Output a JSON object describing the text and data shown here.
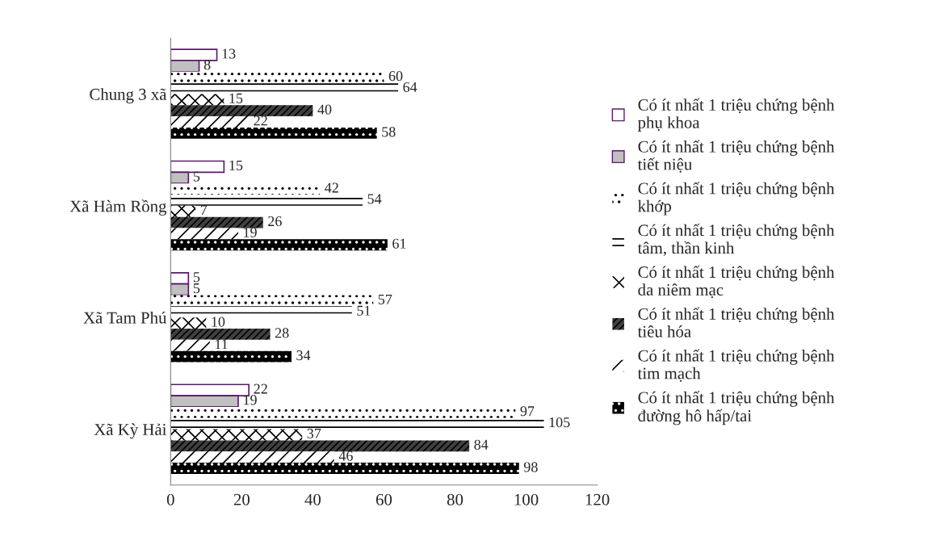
{
  "chart_data": {
    "type": "bar",
    "orientation": "horizontal",
    "categories": [
      "Chung 3 xã",
      "Xã Hàm Rồng",
      "Xã Tam Phú",
      "Xã Kỳ Hải"
    ],
    "series": [
      {
        "name": "Có ít nhất 1 triệu chứng bệnh phụ khoa",
        "color": "#ffffff",
        "values": [
          13,
          15,
          5,
          22
        ]
      },
      {
        "name": "Có ít nhất 1 triệu chứng bệnh tiết niệu",
        "color": "#c0c0c0",
        "values": [
          8,
          5,
          5,
          19
        ]
      },
      {
        "name": "Có ít nhất 1 triệu chứng bệnh khớp",
        "color": "#ffffff",
        "values": [
          60,
          42,
          57,
          97
        ]
      },
      {
        "name": "Có ít nhất 1 triệu chứng bệnh tâm, thần kinh",
        "color": "#ffffff",
        "values": [
          64,
          54,
          51,
          105
        ]
      },
      {
        "name": "Có ít nhất 1 triệu chứng bệnh da niêm mạc",
        "color": "#ffffff",
        "values": [
          15,
          7,
          10,
          37
        ]
      },
      {
        "name": "Có ít nhất 1 triệu chứng bệnh tiêu hóa",
        "color": "#404040",
        "values": [
          40,
          26,
          28,
          84
        ]
      },
      {
        "name": "Có ít nhất 1 triệu chứng bệnh tim mạch",
        "color": "#ffffff",
        "values": [
          22,
          19,
          11,
          46
        ]
      },
      {
        "name": "Có ít nhất 1 triệu chứng bệnh đường hô hấp/tai",
        "color": "#000000",
        "values": [
          58,
          61,
          34,
          98
        ]
      }
    ],
    "xlim": [
      0,
      120
    ],
    "xticks": [
      0,
      20,
      40,
      60,
      80,
      100,
      120
    ],
    "grid": false,
    "legend": "right",
    "data_labels": true
  }
}
